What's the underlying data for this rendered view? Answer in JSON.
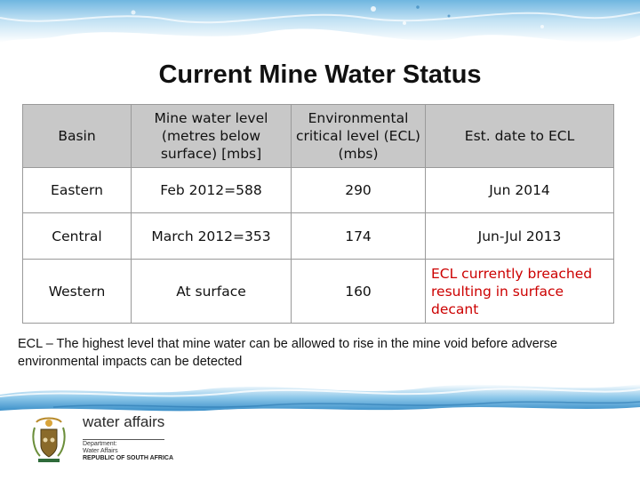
{
  "title": "Current Mine Water Status",
  "table": {
    "headers": [
      "Basin",
      "Mine water level (metres below surface) [mbs]",
      "Environmental critical level (ECL) (mbs)",
      "Est. date to ECL"
    ],
    "rows": [
      [
        "Eastern",
        "Feb 2012=588",
        "290",
        "Jun 2014"
      ],
      [
        "Central",
        "March 2012=353",
        "174",
        "Jun-Jul 2013"
      ],
      [
        "Western",
        "At surface",
        "160",
        "ECL currently breached resulting in surface decant"
      ]
    ]
  },
  "note": "ECL – The highest level that mine water can be allowed to rise in the mine void before adverse environmental impacts can be detected",
  "logo": {
    "main": "water affairs",
    "lines": [
      "Department:",
      "Water Affairs",
      "REPUBLIC OF SOUTH AFRICA"
    ]
  },
  "colors": {
    "header_bg": "#c8c8c8",
    "breach_text": "#cc0000",
    "water": "#5aa8d8"
  }
}
